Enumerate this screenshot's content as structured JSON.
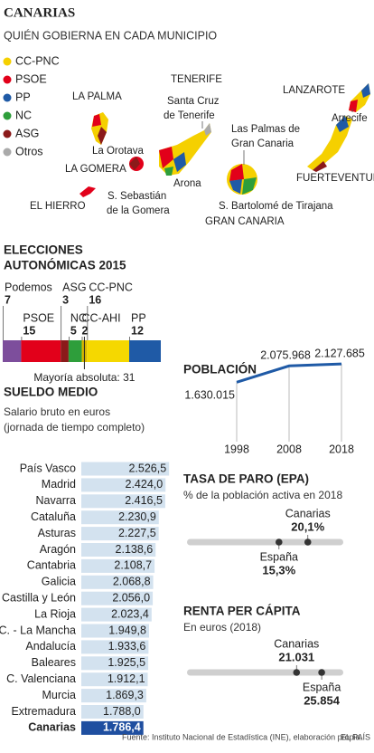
{
  "header": {
    "title": "CANARIAS",
    "subtitle": "QUIÉN GOBIERNA EN CADA MUNICIPIO"
  },
  "map": {
    "legend": [
      {
        "name": "CC-PNC",
        "color": "#f5d000"
      },
      {
        "name": "PSOE",
        "color": "#e2001a"
      },
      {
        "name": "PP",
        "color": "#1f5aa6"
      },
      {
        "name": "NC",
        "color": "#2e9e3b"
      },
      {
        "name": "ASG",
        "color": "#8b1a1a"
      },
      {
        "name": "Otros",
        "color": "#aaaaaa"
      }
    ],
    "labels": [
      "LA PALMA",
      "TENERIFE",
      "Santa Cruz",
      "de Tenerife",
      "LANZAROTE",
      "Arrecife",
      "Las Palmas de",
      "Gran Canaria",
      "La Orotava",
      "LA GOMERA",
      "FUERTEVENTURA",
      "Arona",
      "S. Sebastián",
      "de la Gomera",
      "S. Bartolomé de Tirajana",
      "EL HIERRO",
      "GRAN CANARIA"
    ]
  },
  "chart_data": [
    {
      "type": "stacked_bar",
      "title_lines": [
        "ELECCIONES",
        "AUTONÓMICAS 2015"
      ],
      "series": [
        {
          "name": "Podemos",
          "color": "#7d4e9c",
          "values": [
            7
          ]
        },
        {
          "name": "PSOE",
          "color": "#e2001a",
          "values": [
            15
          ]
        },
        {
          "name": "ASG",
          "color": "#8b1a1a",
          "values": [
            3
          ]
        },
        {
          "name": "NC",
          "color": "#2e9e3b",
          "values": [
            5
          ]
        },
        {
          "name": "CC-AHI",
          "color": "#d9b800",
          "values": [
            2
          ]
        },
        {
          "name": "CC-PNC",
          "color": "#f5d800",
          "values": [
            16
          ]
        },
        {
          "name": "PP",
          "color": "#1f5aa6",
          "values": [
            12
          ]
        }
      ],
      "xlim": [
        0,
        60
      ],
      "majority": 31,
      "annotation": "Mayoría absoluta: 31"
    },
    {
      "type": "line",
      "title": "POBLACIÓN",
      "categories": [
        "1998",
        "2008",
        "2018"
      ],
      "values": [
        1630015,
        2075968,
        2127685
      ],
      "value_labels": [
        "1.630.015",
        "2.075.968",
        "2.127.685"
      ],
      "ylim": [
        0,
        3000000
      ],
      "color": "#1f5aa6"
    },
    {
      "type": "hbar",
      "title": "SUELDO MEDIO",
      "subtitle_lines": [
        "Salario bruto en euros",
        "(jornada de tiempo completo)"
      ],
      "categories": [
        "País Vasco",
        "Madrid",
        "Navarra",
        "Cataluña",
        "Asturas",
        "Aragón",
        "Cantabria",
        "Galicia",
        "Castilla y León",
        "La Rioja",
        "C. - La Mancha",
        "Andalucía",
        "Baleares",
        "C. Valenciana",
        "Murcia",
        "Extremadura",
        "Canarias"
      ],
      "values": [
        2526.5,
        2424.0,
        2416.5,
        2230.9,
        2227.5,
        2138.6,
        2108.7,
        2068.8,
        2056.0,
        2023.4,
        1949.8,
        1933.6,
        1925.5,
        1912.1,
        1869.3,
        1788.0,
        1786.4
      ],
      "value_labels": [
        "2.526,5",
        "2.424,0",
        "2.416,5",
        "2.230,9",
        "2.227,5",
        "2.138,6",
        "2.108,7",
        "2.068,8",
        "2.056,0",
        "2.023,4",
        "1.949,8",
        "1.933,6",
        "1.925,5",
        "1.912,1",
        "1.869,3",
        "1.788,0",
        "1.786,4"
      ],
      "xlim": [
        0,
        2600
      ],
      "color": "#d3e2ef",
      "highlight": "Canarias",
      "highlight_color": "#1f4fa0"
    },
    {
      "type": "dot_strip",
      "title": "TASA DE PARO (EPA)",
      "subtitle": "% de la población activa en 2018",
      "categories": [
        "Canarias",
        "España"
      ],
      "values": [
        20.1,
        15.3
      ],
      "value_labels": [
        "20,1%",
        "15,3%"
      ],
      "xlim": [
        0,
        26
      ]
    },
    {
      "type": "dot_strip",
      "title": "RENTA PER CÁPITA",
      "subtitle": "En euros (2018)",
      "categories": [
        "Canarias",
        "España"
      ],
      "values": [
        21031,
        25854
      ],
      "value_labels": [
        "21.031",
        "25.854"
      ],
      "xlim": [
        0,
        30000
      ]
    }
  ],
  "footer": {
    "source": "Fuente: Instituto Nacional de Estadística (INE), elaboración propia.",
    "brand": "EL PAÍS"
  }
}
